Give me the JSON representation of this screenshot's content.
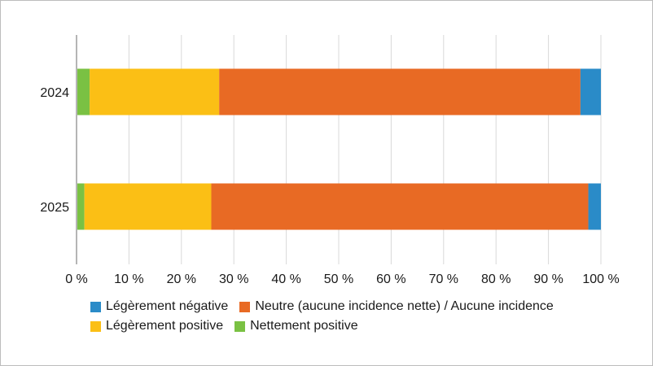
{
  "chart_data": {
    "type": "bar",
    "orientation": "horizontal",
    "stacked": true,
    "categories": [
      "2024",
      "2025"
    ],
    "series": [
      {
        "name": "Nettement positive",
        "color": "#7ac143",
        "values": [
          2.5,
          1.5
        ]
      },
      {
        "name": "Légèrement positive",
        "color": "#fbbf15",
        "values": [
          24.7,
          24.2
        ]
      },
      {
        "name": "Neutre (aucune incidence nette) / Aucune incidence",
        "color": "#e86a24",
        "values": [
          68.9,
          71.9
        ]
      },
      {
        "name": "Légèrement négative",
        "color": "#2a8bc8",
        "values": [
          3.9,
          2.4
        ]
      }
    ],
    "xlim": [
      0,
      100
    ],
    "xticks": [
      "0 %",
      "10 %",
      "20 %",
      "30 %",
      "40 %",
      "50 %",
      "60 %",
      "70 %",
      "80 %",
      "90 %",
      "100 %"
    ],
    "grid": true,
    "legend_position": "bottom",
    "legend_order": [
      [
        "Légèrement négative",
        "Neutre (aucune incidence nette) / Aucune incidence"
      ],
      [
        "Légèrement positive",
        "Nettement positive"
      ]
    ]
  }
}
